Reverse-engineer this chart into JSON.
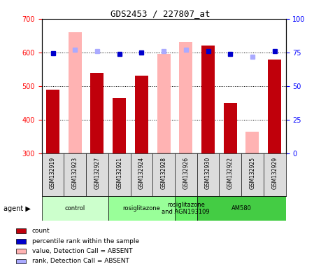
{
  "title": "GDS2453 / 227807_at",
  "samples": [
    "GSM132919",
    "GSM132923",
    "GSM132927",
    "GSM132921",
    "GSM132924",
    "GSM132928",
    "GSM132926",
    "GSM132930",
    "GSM132922",
    "GSM132925",
    "GSM132929"
  ],
  "count_values": [
    490,
    null,
    540,
    465,
    530,
    null,
    null,
    620,
    450,
    null,
    578
  ],
  "absent_value_bars": [
    null,
    660,
    540,
    null,
    null,
    595,
    630,
    null,
    null,
    365,
    null
  ],
  "percentile_rank": [
    74.5,
    null,
    null,
    74,
    75,
    null,
    null,
    76,
    74,
    null,
    76
  ],
  "absent_rank": [
    null,
    77,
    76,
    null,
    null,
    76,
    77,
    null,
    null,
    72,
    null
  ],
  "ylim_left": [
    300,
    700
  ],
  "ylim_right": [
    0,
    100
  ],
  "yticks_left": [
    300,
    400,
    500,
    600,
    700
  ],
  "yticks_right": [
    0,
    25,
    50,
    75,
    100
  ],
  "bar_color_present": "#c0000b",
  "bar_color_absent": "#ffb3b3",
  "dot_color_present": "#0000cc",
  "dot_color_absent": "#aaaaff",
  "groups": [
    {
      "label": "control",
      "start": 0,
      "end": 3,
      "color": "#ccffcc"
    },
    {
      "label": "rosiglitazone",
      "start": 3,
      "end": 6,
      "color": "#99ff99"
    },
    {
      "label": "rosiglitazone\nand AGN193109",
      "start": 6,
      "end": 7,
      "color": "#66ee66"
    },
    {
      "label": "AM580",
      "start": 7,
      "end": 11,
      "color": "#44cc44"
    }
  ],
  "legend_items": [
    {
      "label": "count",
      "color": "#c0000b"
    },
    {
      "label": "percentile rank within the sample",
      "color": "#0000cc"
    },
    {
      "label": "value, Detection Call = ABSENT",
      "color": "#ffb3b3"
    },
    {
      "label": "rank, Detection Call = ABSENT",
      "color": "#aaaaff"
    }
  ],
  "agent_label": "agent",
  "bg_color": "#dcdcdc"
}
